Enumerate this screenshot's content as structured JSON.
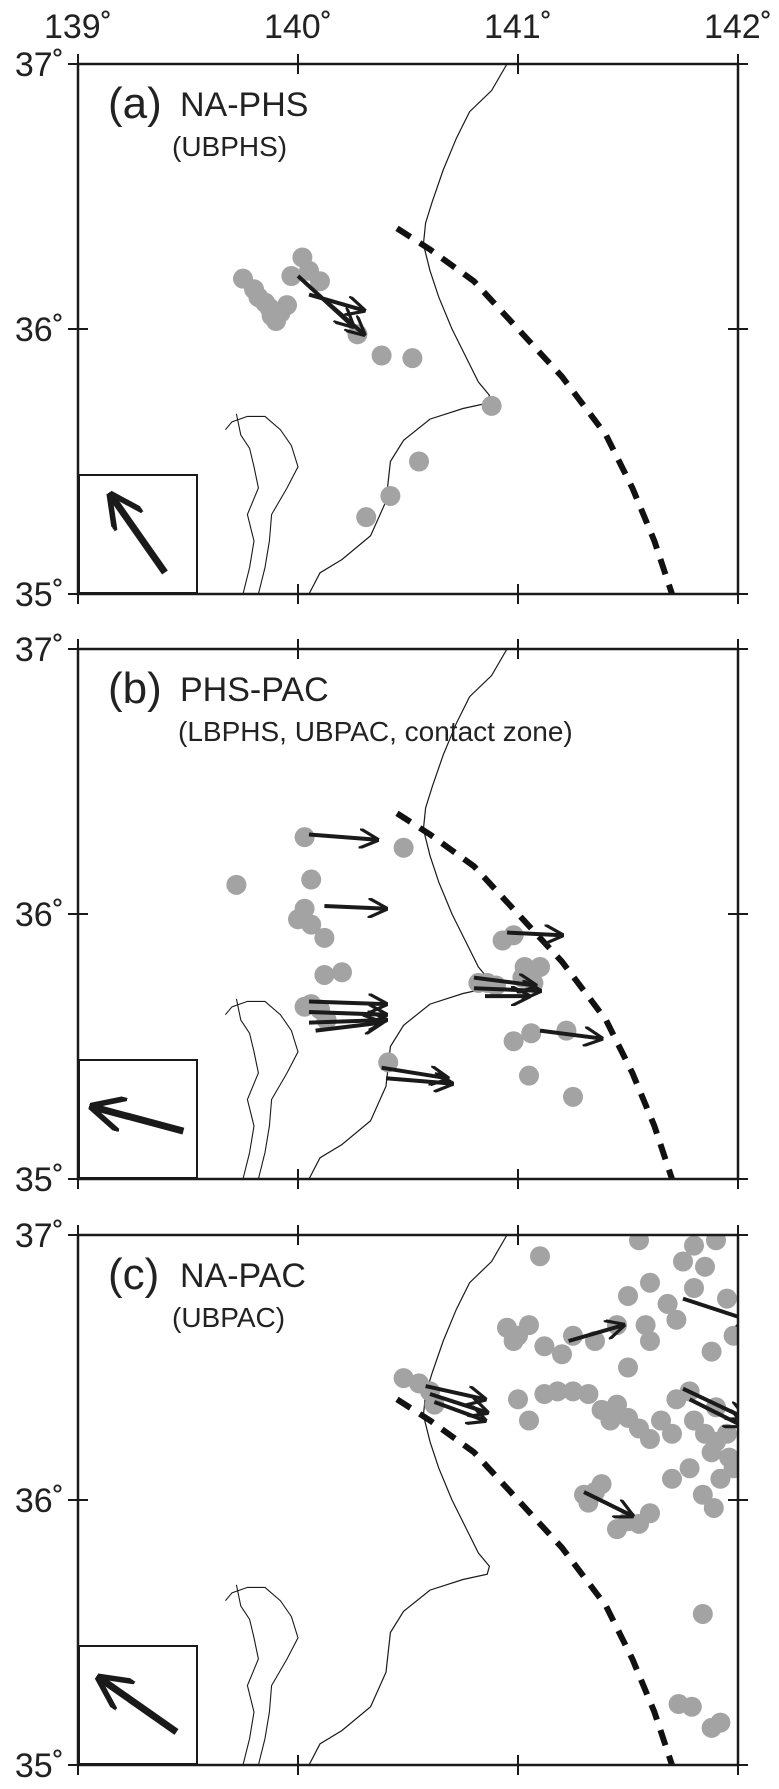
{
  "axes": {
    "x_ticks": [
      {
        "value": 139,
        "label": "139˚"
      },
      {
        "value": 140,
        "label": "140˚"
      },
      {
        "value": 141,
        "label": "141˚"
      },
      {
        "value": 142,
        "label": "142˚"
      }
    ],
    "y_ticks": [
      {
        "value": 35,
        "label": "35˚"
      },
      {
        "value": 36,
        "label": "36˚"
      },
      {
        "value": 37,
        "label": "37˚"
      }
    ],
    "lon_range": [
      139,
      142
    ],
    "lat_range": [
      35,
      37
    ]
  },
  "colors": {
    "event": "#a3a3a3",
    "arrow": "#1a1a1a",
    "coast": "#1a1a1a",
    "trench": "#111111",
    "frame": "#1a1a1a"
  },
  "panels": [
    {
      "letter": "(a)",
      "title": "NA-PHS",
      "subtitle": "(UBPHS)",
      "legend_arrow": {
        "direction_deg": 125,
        "length": "long"
      },
      "events": [
        [
          139.75,
          36.19
        ],
        [
          139.8,
          36.15
        ],
        [
          139.82,
          36.12
        ],
        [
          139.85,
          36.1
        ],
        [
          139.87,
          36.08
        ],
        [
          139.88,
          36.05
        ],
        [
          139.9,
          36.03
        ],
        [
          139.92,
          36.06
        ],
        [
          139.95,
          36.09
        ],
        [
          139.97,
          36.2
        ],
        [
          140.02,
          36.27
        ],
        [
          140.05,
          36.22
        ],
        [
          140.1,
          36.18
        ],
        [
          140.27,
          35.98
        ],
        [
          140.38,
          35.9
        ],
        [
          140.52,
          35.89
        ],
        [
          140.88,
          35.71
        ],
        [
          140.55,
          35.5
        ],
        [
          140.42,
          35.37
        ],
        [
          140.31,
          35.29
        ]
      ],
      "vectors": [
        {
          "from": [
            140.0,
            36.2
          ],
          "to": [
            140.25,
            36.01
          ]
        },
        {
          "from": [
            140.05,
            36.13
          ],
          "to": [
            140.3,
            36.07
          ]
        },
        {
          "from": [
            140.12,
            36.11
          ],
          "to": [
            140.3,
            35.98
          ]
        }
      ]
    },
    {
      "letter": "(b)",
      "title": "PHS-PAC",
      "subtitle": "(LBPHS, UBPAC, contact zone)",
      "legend_arrow": {
        "direction_deg": 165,
        "length": "long"
      },
      "events": [
        [
          139.72,
          36.11
        ],
        [
          140.03,
          36.29
        ],
        [
          140.06,
          36.13
        ],
        [
          140.03,
          36.02
        ],
        [
          140.0,
          35.98
        ],
        [
          140.06,
          35.96
        ],
        [
          140.12,
          35.91
        ],
        [
          140.12,
          35.77
        ],
        [
          140.2,
          35.78
        ],
        [
          140.03,
          35.65
        ],
        [
          140.06,
          35.66
        ],
        [
          140.1,
          35.64
        ],
        [
          140.13,
          35.6
        ],
        [
          140.41,
          35.44
        ],
        [
          140.48,
          36.25
        ],
        [
          140.82,
          35.74
        ],
        [
          140.86,
          35.74
        ],
        [
          140.9,
          35.73
        ],
        [
          140.93,
          35.9
        ],
        [
          140.98,
          35.92
        ],
        [
          141.03,
          35.8
        ],
        [
          141.02,
          35.76
        ],
        [
          141.07,
          35.74
        ],
        [
          141.1,
          35.8
        ],
        [
          140.98,
          35.52
        ],
        [
          141.06,
          35.55
        ],
        [
          141.22,
          35.56
        ],
        [
          141.05,
          35.39
        ],
        [
          141.25,
          35.31
        ]
      ],
      "vectors": [
        {
          "from": [
            140.05,
            36.3
          ],
          "to": [
            140.36,
            36.28
          ]
        },
        {
          "from": [
            140.12,
            36.03
          ],
          "to": [
            140.4,
            36.02
          ]
        },
        {
          "from": [
            140.05,
            35.67
          ],
          "to": [
            140.4,
            35.66
          ]
        },
        {
          "from": [
            140.05,
            35.63
          ],
          "to": [
            140.4,
            35.62
          ]
        },
        {
          "from": [
            140.05,
            35.59
          ],
          "to": [
            140.4,
            35.6
          ]
        },
        {
          "from": [
            140.08,
            35.56
          ],
          "to": [
            140.38,
            35.59
          ]
        },
        {
          "from": [
            140.8,
            35.76
          ],
          "to": [
            141.08,
            35.73
          ]
        },
        {
          "from": [
            140.8,
            35.72
          ],
          "to": [
            141.1,
            35.71
          ]
        },
        {
          "from": [
            140.85,
            35.69
          ],
          "to": [
            141.05,
            35.69
          ]
        },
        {
          "from": [
            140.95,
            35.93
          ],
          "to": [
            141.2,
            35.92
          ]
        },
        {
          "from": [
            140.38,
            35.42
          ],
          "to": [
            140.68,
            35.38
          ]
        },
        {
          "from": [
            140.4,
            35.38
          ],
          "to": [
            140.7,
            35.36
          ]
        },
        {
          "from": [
            141.1,
            35.56
          ],
          "to": [
            141.38,
            35.53
          ]
        }
      ]
    },
    {
      "letter": "(c)",
      "title": "NA-PAC",
      "subtitle": "(UBPAC)",
      "legend_arrow": {
        "direction_deg": 145,
        "length": "long"
      },
      "events": [
        [
          141.1,
          36.92
        ],
        [
          141.55,
          36.98
        ],
        [
          141.8,
          36.96
        ],
        [
          141.9,
          36.98
        ],
        [
          141.75,
          36.9
        ],
        [
          141.85,
          36.88
        ],
        [
          141.6,
          36.82
        ],
        [
          141.5,
          36.77
        ],
        [
          141.68,
          36.74
        ],
        [
          141.95,
          36.76
        ],
        [
          141.8,
          36.8
        ],
        [
          141.72,
          36.68
        ],
        [
          141.58,
          36.66
        ],
        [
          141.45,
          36.66
        ],
        [
          141.25,
          36.62
        ],
        [
          141.35,
          36.6
        ],
        [
          141.6,
          36.6
        ],
        [
          141.05,
          36.66
        ],
        [
          141.0,
          36.62
        ],
        [
          140.95,
          36.65
        ],
        [
          140.98,
          36.6
        ],
        [
          141.12,
          36.58
        ],
        [
          141.2,
          36.55
        ],
        [
          141.5,
          36.5
        ],
        [
          141.88,
          36.56
        ],
        [
          141.98,
          36.62
        ],
        [
          140.48,
          36.46
        ],
        [
          140.55,
          36.44
        ],
        [
          140.6,
          36.41
        ],
        [
          140.62,
          36.36
        ],
        [
          141.0,
          36.38
        ],
        [
          141.05,
          36.3
        ],
        [
          141.12,
          36.4
        ],
        [
          141.18,
          36.41
        ],
        [
          141.25,
          36.41
        ],
        [
          141.32,
          36.4
        ],
        [
          141.38,
          36.34
        ],
        [
          141.42,
          36.3
        ],
        [
          141.45,
          36.36
        ],
        [
          141.5,
          36.31
        ],
        [
          141.55,
          36.27
        ],
        [
          141.6,
          36.23
        ],
        [
          141.7,
          36.25
        ],
        [
          141.65,
          36.3
        ],
        [
          141.72,
          36.38
        ],
        [
          141.78,
          36.41
        ],
        [
          141.8,
          36.3
        ],
        [
          141.85,
          36.25
        ],
        [
          141.9,
          36.22
        ],
        [
          141.9,
          36.35
        ],
        [
          141.95,
          36.25
        ],
        [
          141.88,
          36.18
        ],
        [
          141.96,
          36.16
        ],
        [
          141.98,
          36.12
        ],
        [
          141.92,
          36.08
        ],
        [
          141.78,
          36.12
        ],
        [
          141.7,
          36.08
        ],
        [
          141.84,
          36.02
        ],
        [
          141.89,
          35.97
        ],
        [
          141.3,
          36.02
        ],
        [
          141.32,
          35.99
        ],
        [
          141.35,
          36.03
        ],
        [
          141.38,
          36.06
        ],
        [
          141.6,
          35.95
        ],
        [
          141.55,
          35.91
        ],
        [
          141.45,
          35.89
        ],
        [
          141.5,
          35.92
        ],
        [
          141.84,
          35.57
        ],
        [
          141.73,
          35.23
        ],
        [
          141.79,
          35.22
        ],
        [
          141.88,
          35.14
        ],
        [
          141.92,
          35.16
        ]
      ],
      "vectors": [
        {
          "from": [
            140.58,
            36.43
          ],
          "to": [
            140.85,
            36.38
          ]
        },
        {
          "from": [
            140.6,
            36.4
          ],
          "to": [
            140.86,
            36.33
          ]
        },
        {
          "from": [
            140.62,
            36.37
          ],
          "to": [
            140.85,
            36.3
          ]
        },
        {
          "from": [
            141.23,
            36.6
          ],
          "to": [
            141.48,
            36.66
          ]
        },
        {
          "from": [
            141.3,
            36.03
          ],
          "to": [
            141.52,
            35.94
          ]
        },
        {
          "from": [
            141.75,
            36.76
          ],
          "to": [
            142.08,
            36.67
          ]
        },
        {
          "from": [
            141.75,
            36.42
          ],
          "to": [
            142.03,
            36.31
          ]
        },
        {
          "from": [
            141.78,
            36.38
          ],
          "to": [
            142.02,
            36.28
          ]
        }
      ]
    }
  ]
}
